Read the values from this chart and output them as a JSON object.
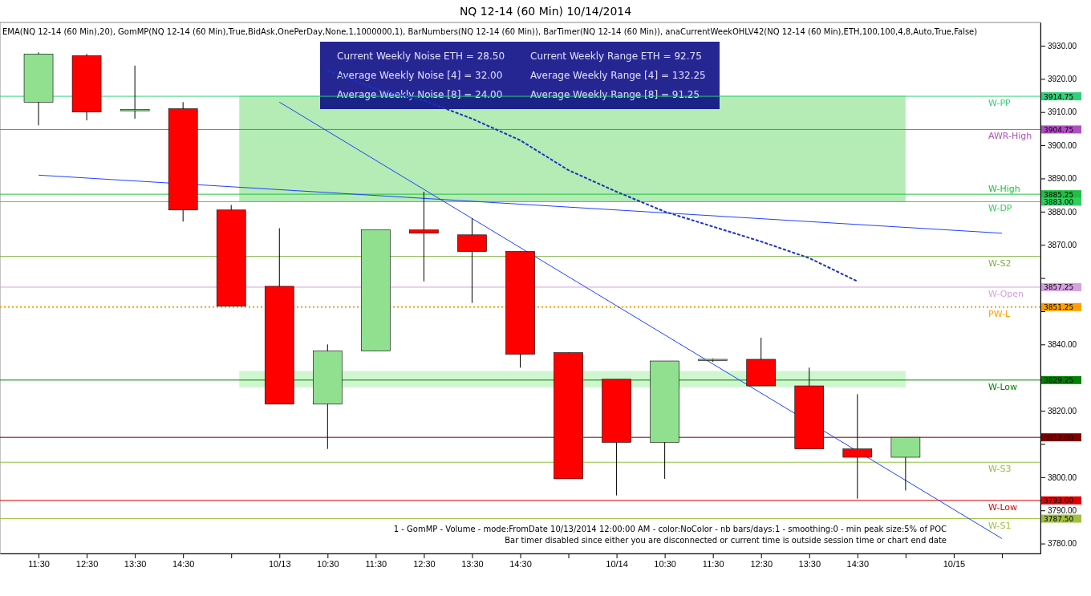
{
  "chart_data": {
    "type": "candlestick",
    "title": "NQ 12-14 (60 Min)  10/14/2014",
    "categories": [
      "11:30",
      "12:30",
      "13:30",
      "14:30",
      null,
      "10/13",
      "10:30",
      "11:30",
      "12:30",
      "13:30",
      "14:30",
      null,
      "10/14",
      "10:30",
      "11:30",
      "12:30",
      "13:30",
      "14:30",
      null,
      "10/15",
      null
    ],
    "ohlc": [
      [
        3913,
        3928,
        3906,
        3927.5
      ],
      [
        3927,
        3927.5,
        3907.5,
        3910
      ],
      [
        3910.5,
        3924,
        3908,
        3910.75
      ],
      [
        3911,
        3913,
        3877,
        3880.5
      ],
      [
        3880.5,
        3882,
        3851.5,
        3851.5
      ],
      [
        3857.5,
        3875,
        3822,
        3822
      ],
      [
        3822,
        3840,
        3808.5,
        3838
      ],
      [
        3838,
        3874.5,
        3838,
        3874.5
      ],
      [
        3874.5,
        3886,
        3859,
        3873.5
      ],
      [
        3873,
        3878,
        3852.5,
        3868
      ],
      [
        3868,
        3868,
        3833,
        3837
      ],
      [
        3837.5,
        3837.5,
        3799.5,
        3799.5
      ],
      [
        3829.5,
        3829.5,
        3794.5,
        3810.5
      ],
      [
        3810.5,
        3835,
        3799.5,
        3835
      ],
      [
        3835.25,
        3835.75,
        3834.75,
        3835.5
      ],
      [
        3835.5,
        3842,
        3827.5,
        3827.5
      ],
      [
        3827.5,
        3833,
        3808.5,
        3808.5
      ],
      [
        3808.5,
        3825,
        3793.5,
        3806
      ],
      [
        3806,
        3812,
        3796,
        3812
      ],
      null,
      null
    ],
    "colors": [
      "#90e090",
      "#ff0000",
      "#90e090",
      "#ff0000",
      "#ff0000",
      "#ff0000",
      "#90e090",
      "#90e090",
      "#ff0000",
      "#ff0000",
      "#ff0000",
      "#ff0000",
      "#ff0000",
      "#90e090",
      "#90e090",
      "#ff0000",
      "#ff0000",
      "#ff0000",
      "#90e090",
      null,
      null
    ],
    "series": [
      {
        "type": "line",
        "color": "#1a33c4",
        "line_style": "dashed",
        "values": [
          null,
          null,
          null,
          null,
          null,
          null,
          3922.5,
          3917,
          3913.5,
          3908,
          3901.5,
          3892.5,
          3886,
          3880,
          3875.5,
          3871,
          3866,
          3859,
          null,
          null,
          null
        ]
      },
      {
        "type": "line",
        "color": "#2040ff",
        "line_style": "solid",
        "values": [
          3891,
          null,
          null,
          null,
          null,
          null,
          null,
          null,
          null,
          null,
          null,
          null,
          null,
          null,
          null,
          null,
          null,
          null,
          null,
          null,
          3873.5
        ]
      },
      {
        "type": "line",
        "color": "#2040ff",
        "line_style": "solid",
        "values": [
          null,
          null,
          null,
          null,
          null,
          3913,
          null,
          null,
          null,
          null,
          null,
          null,
          null,
          null,
          null,
          null,
          null,
          null,
          null,
          null,
          3781.5
        ]
      }
    ],
    "ylim": [
      3777,
      3937
    ],
    "yticks": [
      {
        "value": 3780,
        "label": "3780.00"
      },
      {
        "value": 3790,
        "label": "3790.00"
      },
      {
        "value": 3800,
        "label": "3800.00"
      },
      {
        "value": 3810,
        "label": null
      },
      {
        "value": 3820,
        "label": "3820.00"
      },
      {
        "value": 3830,
        "label": null
      },
      {
        "value": 3840,
        "label": "3840.00"
      },
      {
        "value": 3850,
        "label": null
      },
      {
        "value": 3860,
        "label": null
      },
      {
        "value": 3870,
        "label": "3870.00"
      },
      {
        "value": 3880,
        "label": "3880.00"
      },
      {
        "value": 3890,
        "label": "3890.00"
      },
      {
        "value": 3900,
        "label": "3900.00"
      },
      {
        "value": 3910,
        "label": "3910.00"
      },
      {
        "value": 3920,
        "label": "3920.00"
      },
      {
        "value": 3930,
        "label": "3930.00"
      }
    ],
    "bands": [
      {
        "axis": "y",
        "from": 3883,
        "to": 3915,
        "color": "#a8e8a8"
      },
      {
        "axis": "y",
        "from": 3827,
        "to": 3832,
        "color": "#c8f4c8"
      }
    ],
    "ref_lines": [
      {
        "axis": "y",
        "value": 3914.75,
        "label": "W-PP",
        "color": "#2fd07a"
      },
      {
        "axis": "y",
        "value": 3904.75,
        "label": "AWR-High",
        "color": "#b050c0"
      },
      {
        "axis": "y",
        "value": 3885.25,
        "label": "W-High",
        "color": "#20c040"
      },
      {
        "axis": "y",
        "value": 3883,
        "label": "W-DP",
        "color": "#30d060"
      },
      {
        "axis": "y",
        "value": 3857.25,
        "label": "W-Open",
        "color": "#d8a0e0"
      },
      {
        "axis": "y",
        "value": 3851.25,
        "label": "PW-L",
        "color": "#ffa000",
        "line_style": "dotted"
      },
      {
        "axis": "y",
        "value": 3829.25,
        "label": "W-Low",
        "color": "#008000"
      },
      {
        "axis": "y",
        "value": 3812,
        "color": "#800000"
      },
      {
        "axis": "y",
        "value": 3793,
        "label": "W-Low",
        "color": "#e00000"
      },
      {
        "axis": "y",
        "value": 3787.5,
        "label": "W-S1",
        "color": "#a0c040"
      },
      {
        "axis": "y",
        "value": 3866.5,
        "label": "W-S2",
        "color": "#80b040"
      },
      {
        "axis": "y",
        "value": 3804.5,
        "label": "W-S3",
        "color": "#90c040"
      }
    ],
    "annotations": [
      "Current Weekly Noise ETH = 28.50",
      "Current Weekly Range ETH = 92.75",
      "Average Weekly Noise [4] = 32.00",
      "Average Weekly Range [4] = 132.25",
      "Average Weekly Noise [8] = 24.00",
      "Average Weekly Range [8] = 91.25",
      "EMA(NQ 12-14 (60 Min),20), GomMP(NQ 12-14 (60 Min),True,BidAsk,OnePerDay,None,1,1000000,1), BarNumbers(NQ 12-14 (60 Min)), BarTimer(NQ 12-14 (60 Min)), anaCurrentWeekOHLV42(NQ 12-14 (60 Min),ETH,100,100,4,8,Auto,True,False)",
      "1 - GomMP  - Volume - mode:FromDate 10/13/2014 12:00:00 AM  - color:NoColor - nb bars/days:1 - smoothing:0 - min peak size:5% of POC",
      "Bar timer disabled since either you are disconnected or current time is outside session time or chart end date",
      "3914.75",
      "3904.75",
      "3885.25",
      "3883.00",
      "3857.25",
      "3851.25",
      "3829.25",
      "3812.00",
      "3793.00",
      "3787.50"
    ]
  }
}
